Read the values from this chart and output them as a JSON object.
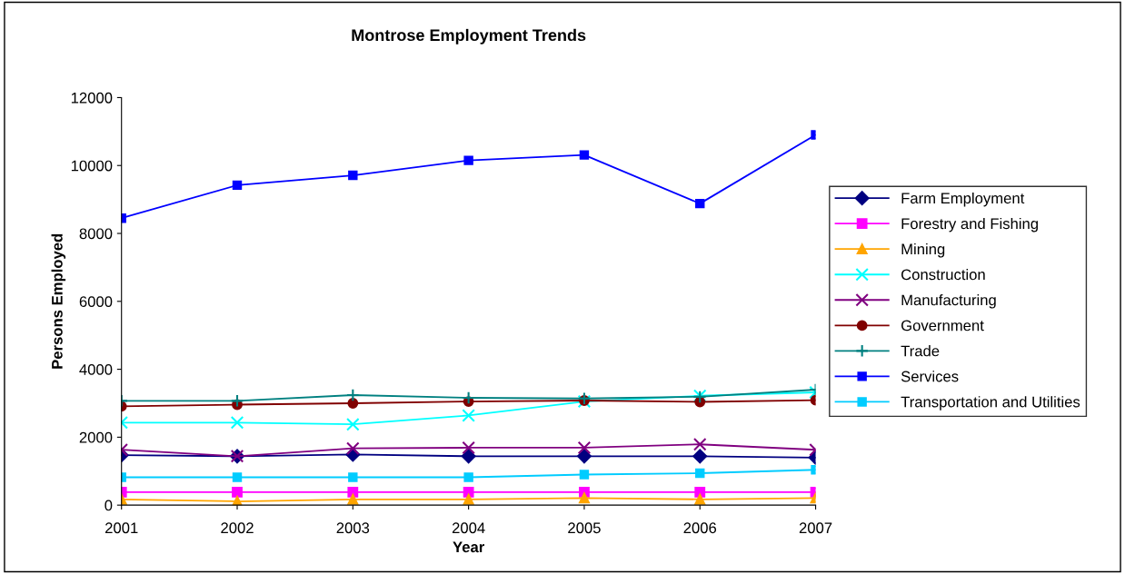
{
  "chart_data": {
    "type": "line",
    "title": "Montrose Employment Trends",
    "xlabel": "Year",
    "ylabel": "Persons Employed",
    "categories": [
      "2001",
      "2002",
      "2003",
      "2004",
      "2005",
      "2006",
      "2007"
    ],
    "ylim": [
      0,
      12000
    ],
    "yticks": [
      0,
      2000,
      4000,
      6000,
      8000,
      10000,
      12000
    ],
    "grid": false,
    "legend": "right",
    "series": [
      {
        "name": "Farm Employment",
        "color": "#000080",
        "marker": "diamond",
        "values": [
          1470,
          1440,
          1490,
          1440,
          1440,
          1440,
          1400
        ]
      },
      {
        "name": "Forestry and Fishing",
        "color": "#ff00ff",
        "marker": "square",
        "values": [
          380,
          380,
          380,
          380,
          380,
          380,
          380
        ]
      },
      {
        "name": "Mining",
        "color": "#ffa500",
        "marker": "triangle",
        "values": [
          170,
          110,
          170,
          170,
          210,
          170,
          210
        ]
      },
      {
        "name": "Construction",
        "color": "#00ffff",
        "marker": "cross",
        "values": [
          2430,
          2430,
          2380,
          2640,
          3050,
          3220,
          3320
        ]
      },
      {
        "name": "Manufacturing",
        "color": "#800080",
        "marker": "cross",
        "values": [
          1630,
          1440,
          1670,
          1690,
          1690,
          1790,
          1630
        ]
      },
      {
        "name": "Government",
        "color": "#800000",
        "marker": "circle",
        "values": [
          2910,
          2960,
          3000,
          3050,
          3080,
          3040,
          3090
        ]
      },
      {
        "name": "Trade",
        "color": "#008080",
        "marker": "plus",
        "values": [
          3070,
          3070,
          3240,
          3160,
          3140,
          3190,
          3400
        ]
      },
      {
        "name": "Services",
        "color": "#0000ff",
        "marker": "square",
        "values": [
          8450,
          9420,
          9710,
          10150,
          10310,
          8880,
          10900
        ]
      },
      {
        "name": "Transportation and Utilities",
        "color": "#00ccff",
        "marker": "square",
        "values": [
          820,
          820,
          820,
          820,
          900,
          940,
          1040
        ]
      }
    ]
  }
}
